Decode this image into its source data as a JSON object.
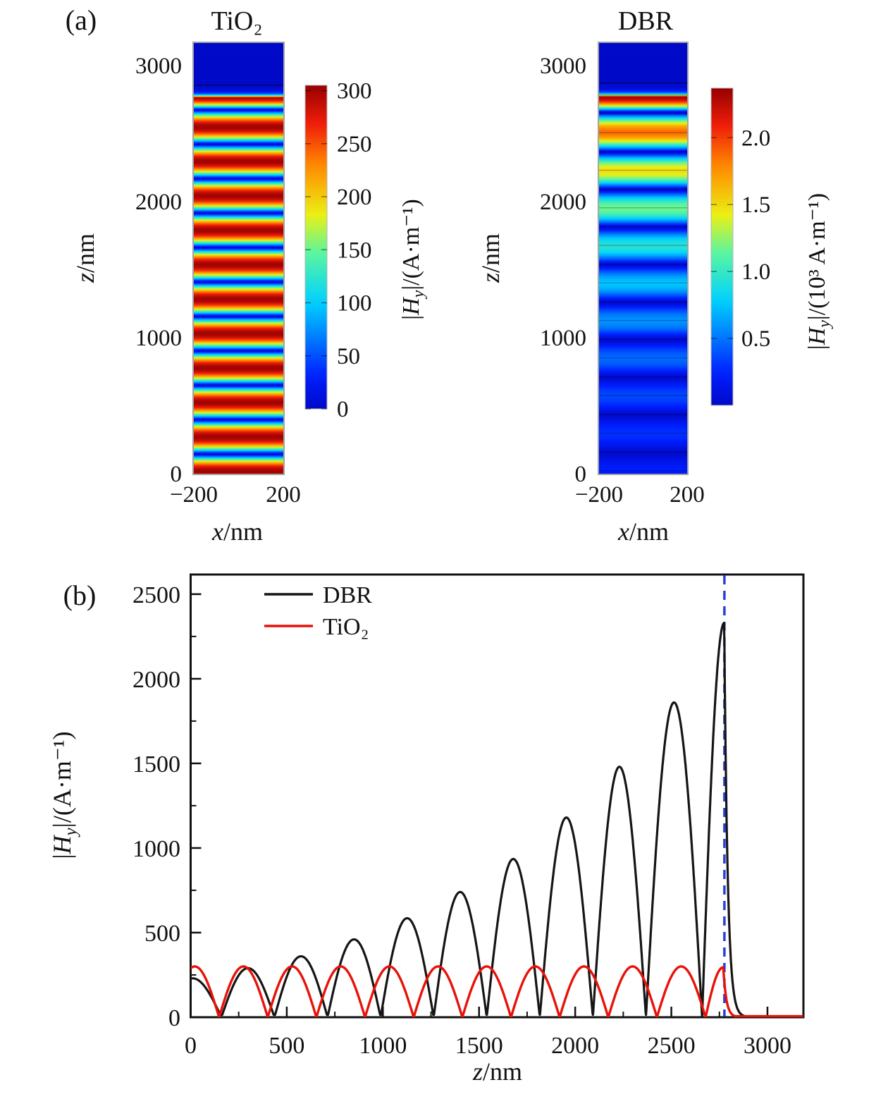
{
  "figure": {
    "panel_a_label": "(a)",
    "panel_b_label": "(b)"
  },
  "colors": {
    "background": "#ffffff",
    "axis": "#111111",
    "map_frame": "#a3a3a3",
    "dbr_curve": "#151515",
    "tio2_curve": "#e81208",
    "vline_blue": "#2540d8"
  },
  "jet_stops": [
    [
      0.0,
      [
        0,
        10,
        200
      ]
    ],
    [
      0.1,
      [
        0,
        30,
        255
      ]
    ],
    [
      0.33,
      [
        0,
        210,
        255
      ]
    ],
    [
      0.48,
      [
        90,
        245,
        160
      ]
    ],
    [
      0.6,
      [
        235,
        240,
        20
      ]
    ],
    [
      0.75,
      [
        255,
        140,
        0
      ]
    ],
    [
      0.88,
      [
        240,
        30,
        10
      ]
    ],
    [
      1.0,
      [
        150,
        0,
        0
      ]
    ]
  ],
  "chart_data": [
    {
      "type": "heatmap",
      "id": "tio2-map",
      "title": "TiO₂",
      "xlabel": {
        "var": "x",
        "post": "/nm"
      },
      "ylabel": {
        "var": "z",
        "post": "/nm"
      },
      "x_range_nm": [
        -200,
        200
      ],
      "z_range_nm": [
        0,
        3165
      ],
      "x_ticks": [
        {
          "v": -200,
          "label": "−200"
        },
        {
          "v": 200,
          "label": "200"
        }
      ],
      "z_ticks": [
        {
          "v": 0,
          "label": "0"
        },
        {
          "v": 1000,
          "label": "1000"
        },
        {
          "v": 2000,
          "label": "2000"
        },
        {
          "v": 3000,
          "label": "3000"
        }
      ],
      "colorbar": {
        "vmin": 0,
        "vmax": 305,
        "ticks": [
          {
            "v": 0,
            "label": "0"
          },
          {
            "v": 50,
            "label": "50"
          },
          {
            "v": 100,
            "label": "100"
          },
          {
            "v": 150,
            "label": "150"
          },
          {
            "v": 200,
            "label": "200"
          },
          {
            "v": 250,
            "label": "250"
          },
          {
            "v": 300,
            "label": "300"
          }
        ],
        "label": {
          "pre": "|",
          "var": "H",
          "sub": "y",
          "post": "|/(A·m⁻¹)"
        }
      },
      "field": {
        "description": "standing-wave |Hy| in uniform TiO2 slab, nodes every ~253 nm, constant antinode amplitude ~300 A/m",
        "zeros": [
          -105,
          148,
          401,
          654,
          907,
          1160,
          1413,
          1666,
          1919,
          2172,
          2425,
          2678
        ],
        "peak": 300,
        "start_value": 290,
        "last_arch": {
          "z0": 2678,
          "apex": 2770,
          "peak": 295,
          "decay_tau": 16
        },
        "interface_z": 2855,
        "above_interface_value": 0
      }
    },
    {
      "type": "heatmap",
      "id": "dbr-map",
      "title": "DBR",
      "xlabel": {
        "var": "x",
        "post": "/nm"
      },
      "ylabel": {
        "var": "z",
        "post": "/nm"
      },
      "x_range_nm": [
        -200,
        200
      ],
      "z_range_nm": [
        0,
        3165
      ],
      "x_ticks": [
        {
          "v": -200,
          "label": "−200"
        },
        {
          "v": 200,
          "label": "200"
        }
      ],
      "z_ticks": [
        {
          "v": 0,
          "label": "0"
        },
        {
          "v": 1000,
          "label": "1000"
        },
        {
          "v": 2000,
          "label": "2000"
        },
        {
          "v": 3000,
          "label": "3000"
        }
      ],
      "colorbar": {
        "vmin": 0,
        "vmax": 2370,
        "scale_note": "10³",
        "ticks": [
          {
            "v": 500,
            "label": "0.5"
          },
          {
            "v": 1000,
            "label": "1.0"
          },
          {
            "v": 1500,
            "label": "1.5"
          },
          {
            "v": 2000,
            "label": "2.0"
          }
        ],
        "label": {
          "pre": "|",
          "var": "H",
          "sub": "y",
          "post": "|/(10³ A·m⁻¹)"
        }
      },
      "field": {
        "description": "standing-wave |Hy| in DBR stack, amplitude grows toward top surface",
        "zeros": [
          -140,
          160,
          436,
          712,
          988,
          1264,
          1540,
          1816,
          2092,
          2368,
          2660
        ],
        "peaks": [
          230,
          290,
          360,
          460,
          585,
          740,
          935,
          1180,
          1480,
          1860
        ],
        "last_arch": {
          "z0": 2660,
          "apex": 2775,
          "peak": 2330,
          "decay_tau": 18
        },
        "dip_floor": 14,
        "interface_z": 2870,
        "layer_interfaces": {
          "offset": 22,
          "period": 138
        }
      }
    },
    {
      "type": "line",
      "id": "field-profile",
      "xlabel": {
        "var": "z",
        "post": "/nm"
      },
      "ylabel": {
        "pre": "|",
        "var": "H",
        "sub": "y",
        "post": "|/(A·m⁻¹)"
      },
      "xlim": [
        0,
        3187
      ],
      "ylim": [
        0,
        2616
      ],
      "x_major_ticks": [
        {
          "v": 0,
          "label": "0"
        },
        {
          "v": 500,
          "label": "500"
        },
        {
          "v": 1000,
          "label": "1000"
        },
        {
          "v": 1500,
          "label": "1500"
        },
        {
          "v": 2000,
          "label": "2000"
        },
        {
          "v": 2500,
          "label": "2500"
        },
        {
          "v": 3000,
          "label": "3000"
        }
      ],
      "x_minor_step": 250,
      "y_major_ticks": [
        {
          "v": 0,
          "label": "0"
        },
        {
          "v": 500,
          "label": "500"
        },
        {
          "v": 1000,
          "label": "1000"
        },
        {
          "v": 1500,
          "label": "1500"
        },
        {
          "v": 2000,
          "label": "2000"
        },
        {
          "v": 2500,
          "label": "2500"
        }
      ],
      "y_minor_step": 250,
      "legend": [
        {
          "label": "DBR",
          "color": "#151515"
        },
        {
          "label": "TiO₂",
          "color": "#e81208"
        }
      ],
      "series": [
        {
          "name": "DBR",
          "color": "#151515",
          "zeros": [
            -140,
            160,
            436,
            712,
            988,
            1264,
            1540,
            1816,
            2092,
            2368,
            2660
          ],
          "peaks": [
            230,
            290,
            360,
            460,
            585,
            740,
            935,
            1180,
            1480,
            1860
          ],
          "peak_points": [
            [
              298,
              290
            ],
            [
              574,
              360
            ],
            [
              850,
              460
            ],
            [
              1126,
              585
            ],
            [
              1402,
              740
            ],
            [
              1678,
              935
            ],
            [
              1954,
              1180
            ],
            [
              2230,
              1480
            ],
            [
              2514,
              1860
            ],
            [
              2775,
              2330
            ]
          ],
          "start_value": 229,
          "dip_floor": 14,
          "last_arch": {
            "z0": 2660,
            "apex": 2775,
            "peak": 2330,
            "decay_tau": 18
          },
          "tail_value": 3
        },
        {
          "name": "TiO₂",
          "color": "#e81208",
          "zeros": [
            -105,
            148,
            401,
            654,
            907,
            1160,
            1413,
            1666,
            1919,
            2172,
            2425,
            2678
          ],
          "peak": 300,
          "peak_points": [
            [
              275,
              300
            ],
            [
              528,
              300
            ],
            [
              781,
              300
            ],
            [
              1034,
              300
            ],
            [
              1287,
              300
            ],
            [
              1540,
              300
            ],
            [
              1793,
              300
            ],
            [
              2046,
              300
            ],
            [
              2299,
              300
            ],
            [
              2552,
              300
            ],
            [
              2770,
              295
            ]
          ],
          "start_value": 290,
          "dip_floor": 0,
          "last_arch": {
            "z0": 2678,
            "apex": 2770,
            "peak": 295,
            "decay_tau": 16
          },
          "tail_value": 6
        }
      ],
      "vline": {
        "z": 2776,
        "color": "#2540d8",
        "dash": "13 9",
        "note": "DBR top surface position"
      }
    }
  ]
}
